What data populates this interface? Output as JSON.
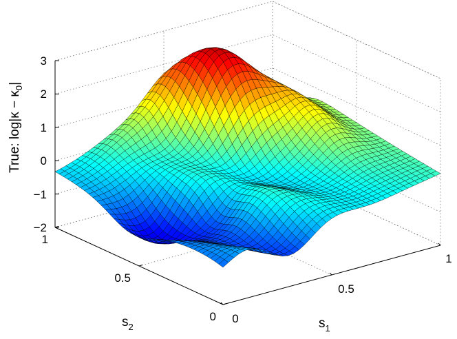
{
  "chart_data": {
    "type": "surface",
    "zlabel_main": "True: log|κ − κ",
    "zlabel_sub": "0",
    "zlabel_end": "|",
    "xlabel_main": "s",
    "xlabel_sub": "1",
    "ylabel_main": "s",
    "ylabel_sub": "2",
    "xlim": [
      0,
      1
    ],
    "ylim": [
      0,
      1
    ],
    "zlim": [
      -2,
      3
    ],
    "x_ticks": [
      "0",
      "0.5",
      "1"
    ],
    "y_ticks": [
      "0",
      "0.5",
      "1"
    ],
    "z_ticks": [
      "3",
      "2",
      "1",
      "0",
      "−1",
      "−2"
    ],
    "grid": true,
    "colormap": "jet",
    "grid_resolution": 40,
    "surface_corners": {
      "s1_0_s2_0": -1.0,
      "s1_1_s2_0": 0.0,
      "s1_0_s2_1": -0.2,
      "s1_1_s2_1": 0.0
    },
    "surface_peak": {
      "s1": 0.65,
      "s2": 0.85,
      "value": 2.9
    },
    "surface_min": {
      "s1": 0.1,
      "s2": 0.55,
      "value": -1.9
    }
  }
}
